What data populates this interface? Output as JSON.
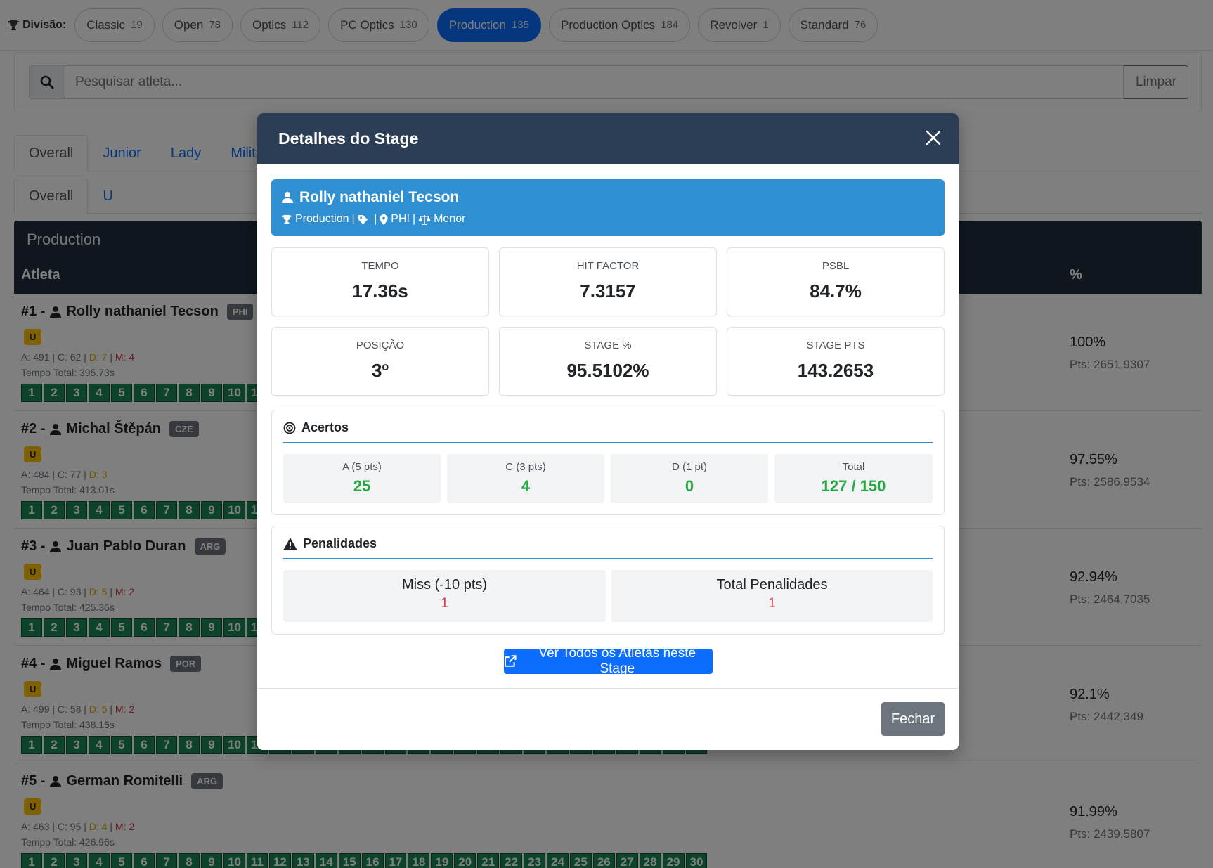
{
  "divisions": {
    "label": "Divisão:",
    "items": [
      {
        "name": "Classic",
        "count": "19",
        "active": false
      },
      {
        "name": "Open",
        "count": "78",
        "active": false
      },
      {
        "name": "Optics",
        "count": "112",
        "active": false
      },
      {
        "name": "PC Optics",
        "count": "130",
        "active": false
      },
      {
        "name": "Production",
        "count": "135",
        "active": true
      },
      {
        "name": "Production Optics",
        "count": "184",
        "active": false
      },
      {
        "name": "Revolver",
        "count": "1",
        "active": false
      },
      {
        "name": "Standard",
        "count": "76",
        "active": false
      }
    ]
  },
  "search": {
    "placeholder": "Pesquisar atleta...",
    "value": "",
    "clear_label": "Limpar"
  },
  "tabs_row1": [
    "Overall",
    "Junior",
    "Lady",
    "Milita"
  ],
  "tabs_row2": [
    "Overall",
    "U"
  ],
  "results": {
    "title": "Production",
    "col_atleta": "Atleta",
    "col_pct": "%",
    "athletes": [
      {
        "rank": "#1 -",
        "name": "Rolly nathaniel Tecson",
        "country": "PHI",
        "category": "U",
        "a": "A: 491",
        "c": "C: 62",
        "d": "D: 7",
        "m": "M: 4",
        "time": "Tempo Total: 395.73s",
        "pct": "100%",
        "pts": "Pts: 2651,9307"
      },
      {
        "rank": "#2 -",
        "name": "Michal Štěpán",
        "country": "CZE",
        "category": "U",
        "a": "A: 484",
        "c": "C: 77",
        "d": "D: 3",
        "m": "",
        "time": "Tempo Total: 413.01s",
        "pct": "97.55%",
        "pts": "Pts: 2586,9534"
      },
      {
        "rank": "#3 -",
        "name": "Juan Pablo Duran",
        "country": "ARG",
        "category": "U",
        "a": "A: 464",
        "c": "C: 93",
        "d": "D: 5",
        "m": "M: 2",
        "time": "Tempo Total: 425.36s",
        "pct": "92.94%",
        "pts": "Pts: 2464,7035"
      },
      {
        "rank": "#4 -",
        "name": "Miguel Ramos",
        "country": "POR",
        "category": "U",
        "a": "A: 499",
        "c": "C: 58",
        "d": "D: 5",
        "m": "M: 2",
        "time": "Tempo Total: 438.15s",
        "pct": "92.1%",
        "pts": "Pts: 2442,349"
      },
      {
        "rank": "#5 -",
        "name": "German Romitelli",
        "country": "ARG",
        "category": "U",
        "a": "A: 463",
        "c": "C: 95",
        "d": "D: 4",
        "m": "M: 2",
        "time": "Tempo Total: 426.96s",
        "pct": "91.99%",
        "pts": "Pts: 2439,5807"
      }
    ],
    "stage_numbers": [
      "1",
      "2",
      "3",
      "4",
      "5",
      "6",
      "7",
      "8",
      "9",
      "10",
      "11",
      "12",
      "13",
      "14",
      "15",
      "16",
      "17",
      "18",
      "19",
      "20",
      "21",
      "22",
      "23",
      "24",
      "25",
      "26",
      "27",
      "28",
      "29",
      "30"
    ]
  },
  "modal": {
    "title": "Detalhes do Stage",
    "athlete": {
      "name": "Rolly nathaniel Tecson",
      "division": "Production",
      "country": "PHI",
      "category": "Menor"
    },
    "metrics": [
      {
        "label": "TEMPO",
        "value": "17.36s"
      },
      {
        "label": "HIT FACTOR",
        "value": "7.3157"
      },
      {
        "label": "PSBL",
        "value": "84.7%"
      },
      {
        "label": "POSIÇÃO",
        "value": "3º"
      },
      {
        "label": "STAGE %",
        "value": "95.5102%"
      },
      {
        "label": "STAGE PTS",
        "value": "143.2653"
      }
    ],
    "hits": {
      "title": "Acertos",
      "cells": [
        {
          "label": "A (5 pts)",
          "value": "25"
        },
        {
          "label": "C (3 pts)",
          "value": "4"
        },
        {
          "label": "D (1 pt)",
          "value": "0"
        },
        {
          "label": "Total",
          "value": "127 / 150"
        }
      ]
    },
    "penalties": {
      "title": "Penalidades",
      "cells": [
        {
          "label": "Miss (-10 pts)",
          "value": "1"
        },
        {
          "label": "Total Penalidades",
          "value": "1"
        }
      ]
    },
    "view_all_label": "Ver Todos os Atletas neste Stage",
    "close_label": "Fechar"
  },
  "colors": {
    "accent": "#0d6efd",
    "header": "#2c3e55",
    "athlete_card": "#2f8fd0",
    "hit_green": "#28a745",
    "penalty_red": "#dc3545"
  }
}
